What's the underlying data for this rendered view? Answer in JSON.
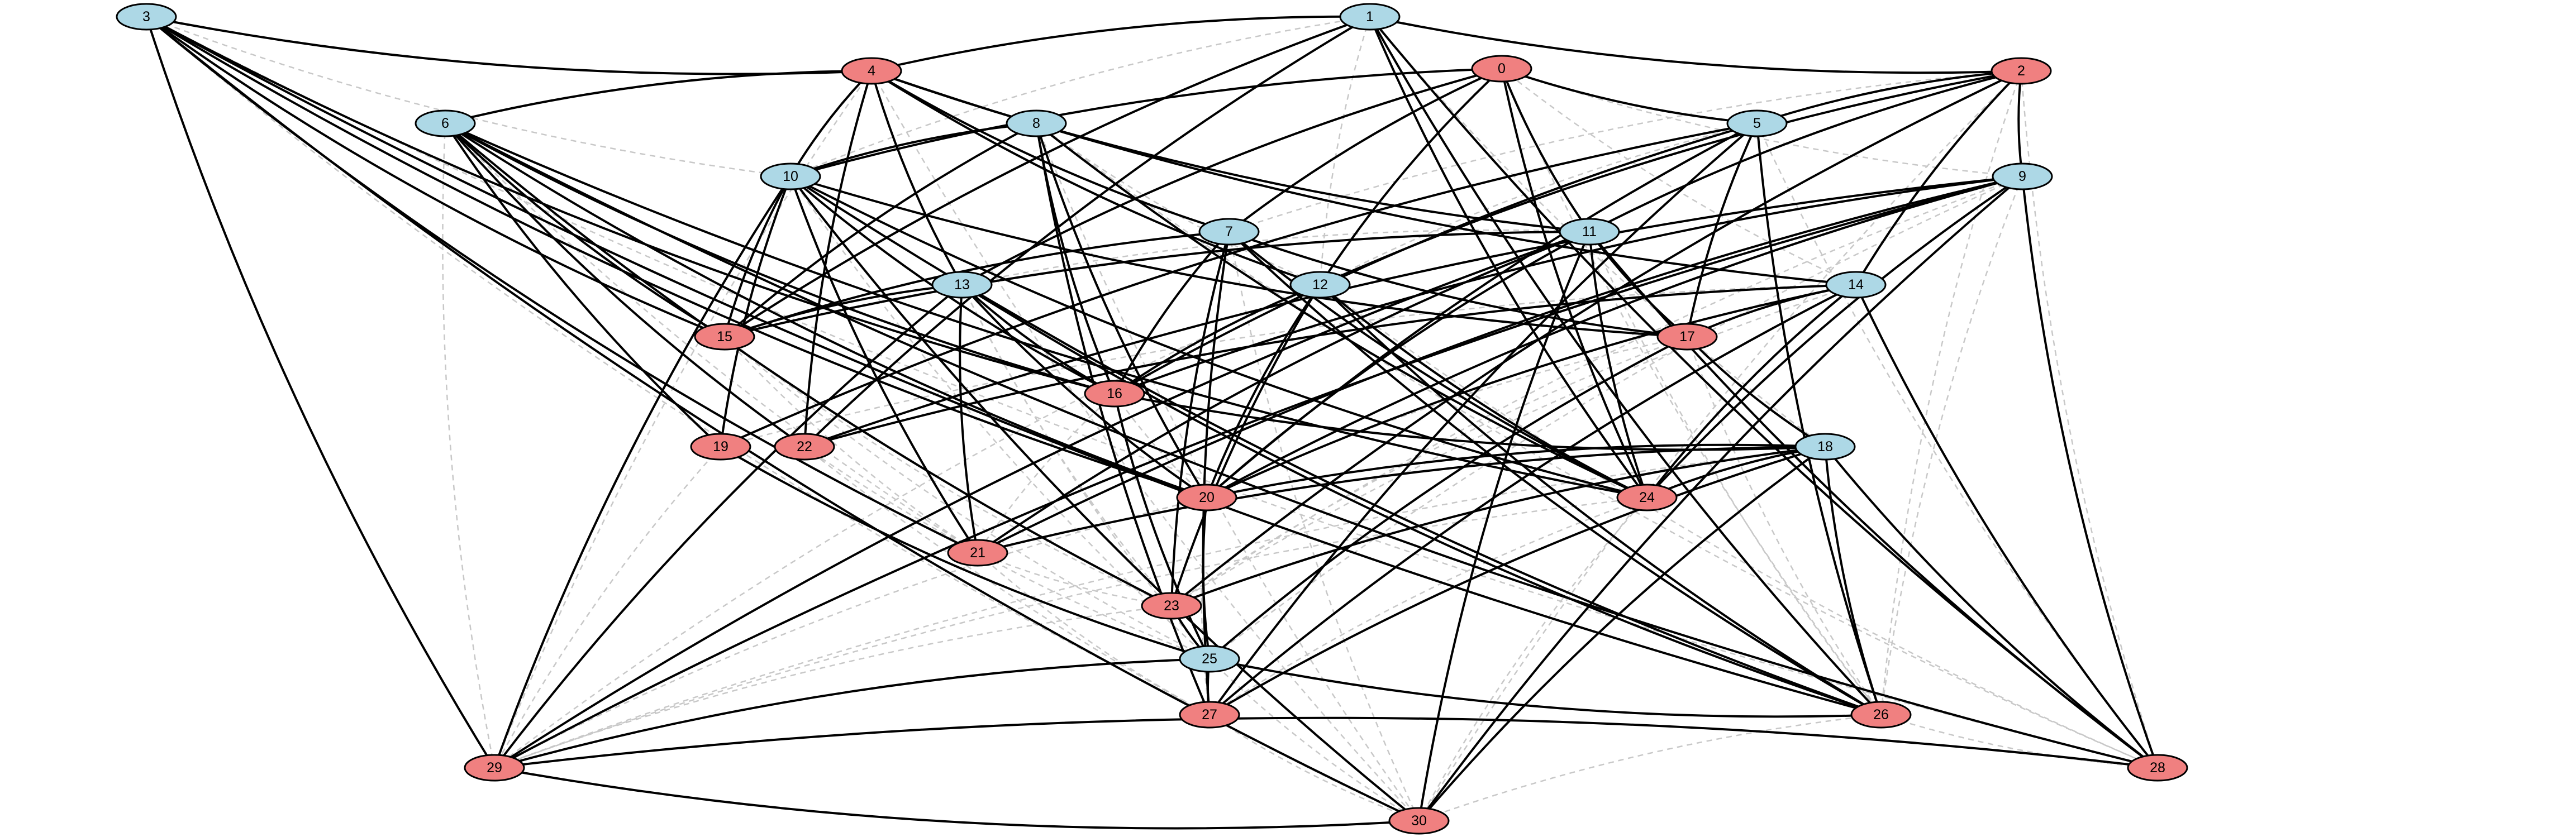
{
  "colors": {
    "blue": "#add8e6",
    "red": "#f08080",
    "solid_edge": "#000000",
    "dashed_edge": "#c8c8c8"
  },
  "nodes": [
    {
      "id": "0",
      "label": "0",
      "color": "red"
    },
    {
      "id": "1",
      "label": "1",
      "color": "blue"
    },
    {
      "id": "2",
      "label": "2",
      "color": "red"
    },
    {
      "id": "3",
      "label": "3",
      "color": "blue"
    },
    {
      "id": "4",
      "label": "4",
      "color": "red"
    },
    {
      "id": "5",
      "label": "5",
      "color": "blue"
    },
    {
      "id": "6",
      "label": "6",
      "color": "blue"
    },
    {
      "id": "7",
      "label": "7",
      "color": "blue"
    },
    {
      "id": "8",
      "label": "8",
      "color": "blue"
    },
    {
      "id": "9",
      "label": "9",
      "color": "blue"
    },
    {
      "id": "10",
      "label": "10",
      "color": "blue"
    },
    {
      "id": "11",
      "label": "11",
      "color": "blue"
    },
    {
      "id": "12",
      "label": "12",
      "color": "blue"
    },
    {
      "id": "13",
      "label": "13",
      "color": "blue"
    },
    {
      "id": "14",
      "label": "14",
      "color": "blue"
    },
    {
      "id": "15",
      "label": "15",
      "color": "red"
    },
    {
      "id": "16",
      "label": "16",
      "color": "red"
    },
    {
      "id": "17",
      "label": "17",
      "color": "red"
    },
    {
      "id": "18",
      "label": "18",
      "color": "blue"
    },
    {
      "id": "19",
      "label": "19",
      "color": "red"
    },
    {
      "id": "20",
      "label": "20",
      "color": "red"
    },
    {
      "id": "21",
      "label": "21",
      "color": "red"
    },
    {
      "id": "22",
      "label": "22",
      "color": "red"
    },
    {
      "id": "23",
      "label": "23",
      "color": "red"
    },
    {
      "id": "24",
      "label": "24",
      "color": "red"
    },
    {
      "id": "25",
      "label": "25",
      "color": "blue"
    },
    {
      "id": "26",
      "label": "26",
      "color": "red"
    },
    {
      "id": "27",
      "label": "27",
      "color": "red"
    },
    {
      "id": "28",
      "label": "28",
      "color": "red"
    },
    {
      "id": "29",
      "label": "29",
      "color": "red"
    },
    {
      "id": "30",
      "label": "30",
      "color": "red"
    }
  ],
  "solid_edges": [
    [
      "1",
      "4"
    ],
    [
      "1",
      "2"
    ],
    [
      "1",
      "15"
    ],
    [
      "1",
      "22"
    ],
    [
      "1",
      "24"
    ],
    [
      "1",
      "26"
    ],
    [
      "1",
      "28"
    ],
    [
      "3",
      "4"
    ],
    [
      "3",
      "15"
    ],
    [
      "3",
      "16"
    ],
    [
      "3",
      "20"
    ],
    [
      "3",
      "21"
    ],
    [
      "3",
      "26"
    ],
    [
      "3",
      "29"
    ],
    [
      "3",
      "30"
    ],
    [
      "4",
      "6"
    ],
    [
      "4",
      "7"
    ],
    [
      "4",
      "10"
    ],
    [
      "4",
      "11"
    ],
    [
      "4",
      "12"
    ],
    [
      "4",
      "13"
    ],
    [
      "4",
      "14"
    ],
    [
      "4",
      "22"
    ],
    [
      "0",
      "5"
    ],
    [
      "0",
      "7"
    ],
    [
      "0",
      "10"
    ],
    [
      "0",
      "11"
    ],
    [
      "0",
      "12"
    ],
    [
      "0",
      "13"
    ],
    [
      "0",
      "24"
    ],
    [
      "2",
      "5"
    ],
    [
      "2",
      "9"
    ],
    [
      "2",
      "11"
    ],
    [
      "2",
      "12"
    ],
    [
      "2",
      "14"
    ],
    [
      "2",
      "23"
    ],
    [
      "5",
      "16"
    ],
    [
      "5",
      "17"
    ],
    [
      "5",
      "19"
    ],
    [
      "5",
      "20"
    ],
    [
      "5",
      "26"
    ],
    [
      "5",
      "27"
    ],
    [
      "6",
      "15"
    ],
    [
      "6",
      "16"
    ],
    [
      "6",
      "19"
    ],
    [
      "6",
      "20"
    ],
    [
      "6",
      "22"
    ],
    [
      "6",
      "23"
    ],
    [
      "6",
      "24"
    ],
    [
      "6",
      "28"
    ],
    [
      "7",
      "15"
    ],
    [
      "7",
      "16"
    ],
    [
      "7",
      "17"
    ],
    [
      "7",
      "23"
    ],
    [
      "7",
      "24"
    ],
    [
      "7",
      "26"
    ],
    [
      "7",
      "27"
    ],
    [
      "8",
      "10"
    ],
    [
      "8",
      "15"
    ],
    [
      "8",
      "16"
    ],
    [
      "8",
      "20"
    ],
    [
      "8",
      "24"
    ],
    [
      "8",
      "27"
    ],
    [
      "9",
      "16"
    ],
    [
      "9",
      "20"
    ],
    [
      "9",
      "21"
    ],
    [
      "9",
      "22"
    ],
    [
      "9",
      "24"
    ],
    [
      "9",
      "28"
    ],
    [
      "9",
      "29"
    ],
    [
      "9",
      "30"
    ],
    [
      "10",
      "15"
    ],
    [
      "10",
      "16"
    ],
    [
      "10",
      "17"
    ],
    [
      "10",
      "19"
    ],
    [
      "10",
      "21"
    ],
    [
      "10",
      "24"
    ],
    [
      "10",
      "26"
    ],
    [
      "10",
      "29"
    ],
    [
      "10",
      "30"
    ],
    [
      "11",
      "15"
    ],
    [
      "11",
      "17"
    ],
    [
      "11",
      "20"
    ],
    [
      "11",
      "21"
    ],
    [
      "11",
      "24"
    ],
    [
      "11",
      "28"
    ],
    [
      "11",
      "29"
    ],
    [
      "11",
      "30"
    ],
    [
      "12",
      "16"
    ],
    [
      "12",
      "20"
    ],
    [
      "12",
      "23"
    ],
    [
      "12",
      "24"
    ],
    [
      "12",
      "26"
    ],
    [
      "13",
      "15"
    ],
    [
      "13",
      "16"
    ],
    [
      "13",
      "20"
    ],
    [
      "13",
      "21"
    ],
    [
      "13",
      "26"
    ],
    [
      "13",
      "29"
    ],
    [
      "14",
      "17"
    ],
    [
      "14",
      "20"
    ],
    [
      "14",
      "22"
    ],
    [
      "14",
      "24"
    ],
    [
      "14",
      "27"
    ],
    [
      "14",
      "28"
    ],
    [
      "16",
      "18"
    ],
    [
      "16",
      "25"
    ],
    [
      "17",
      "18"
    ],
    [
      "17",
      "25"
    ],
    [
      "18",
      "20"
    ],
    [
      "18",
      "21"
    ],
    [
      "18",
      "23"
    ],
    [
      "18",
      "24"
    ],
    [
      "18",
      "26"
    ],
    [
      "18",
      "27"
    ],
    [
      "18",
      "28"
    ],
    [
      "18",
      "30"
    ],
    [
      "19",
      "25"
    ],
    [
      "20",
      "25"
    ],
    [
      "23",
      "25"
    ],
    [
      "25",
      "26"
    ],
    [
      "25",
      "27"
    ],
    [
      "25",
      "29"
    ],
    [
      "28",
      "29"
    ],
    [
      "29",
      "30"
    ]
  ],
  "dashed_edges": [
    [
      "4",
      "29"
    ],
    [
      "4",
      "30"
    ],
    [
      "1",
      "12"
    ],
    [
      "1",
      "10"
    ],
    [
      "2",
      "26"
    ],
    [
      "2",
      "28"
    ],
    [
      "2",
      "30"
    ],
    [
      "3",
      "28"
    ],
    [
      "6",
      "21"
    ],
    [
      "8",
      "28"
    ],
    [
      "0",
      "26"
    ],
    [
      "5",
      "28"
    ],
    [
      "9",
      "23"
    ],
    [
      "9",
      "25"
    ],
    [
      "11",
      "26"
    ],
    [
      "12",
      "28"
    ],
    [
      "13",
      "25"
    ],
    [
      "14",
      "23"
    ],
    [
      "15",
      "21"
    ],
    [
      "15",
      "23"
    ],
    [
      "16",
      "21"
    ],
    [
      "17",
      "20"
    ],
    [
      "17",
      "23"
    ],
    [
      "19",
      "29"
    ],
    [
      "20",
      "29"
    ],
    [
      "21",
      "27"
    ],
    [
      "22",
      "30"
    ],
    [
      "23",
      "29"
    ],
    [
      "24",
      "29"
    ],
    [
      "24",
      "30"
    ],
    [
      "26",
      "30"
    ],
    [
      "27",
      "30"
    ],
    [
      "0",
      "9"
    ],
    [
      "2",
      "7"
    ],
    [
      "3",
      "10"
    ],
    [
      "5",
      "12"
    ],
    [
      "8",
      "12"
    ],
    [
      "11",
      "13"
    ],
    [
      "14",
      "19"
    ],
    [
      "0",
      "14"
    ],
    [
      "1",
      "18"
    ],
    [
      "3",
      "27"
    ],
    [
      "6",
      "29"
    ],
    [
      "10",
      "25"
    ],
    [
      "13",
      "23"
    ],
    [
      "15",
      "25"
    ],
    [
      "16",
      "20"
    ],
    [
      "17",
      "26"
    ],
    [
      "18",
      "29"
    ],
    [
      "20",
      "27"
    ],
    [
      "21",
      "23"
    ],
    [
      "22",
      "25"
    ],
    [
      "24",
      "27"
    ],
    [
      "25",
      "30"
    ],
    [
      "26",
      "28"
    ],
    [
      "7",
      "30"
    ],
    [
      "8",
      "30"
    ],
    [
      "9",
      "26"
    ],
    [
      "12",
      "29"
    ]
  ]
}
